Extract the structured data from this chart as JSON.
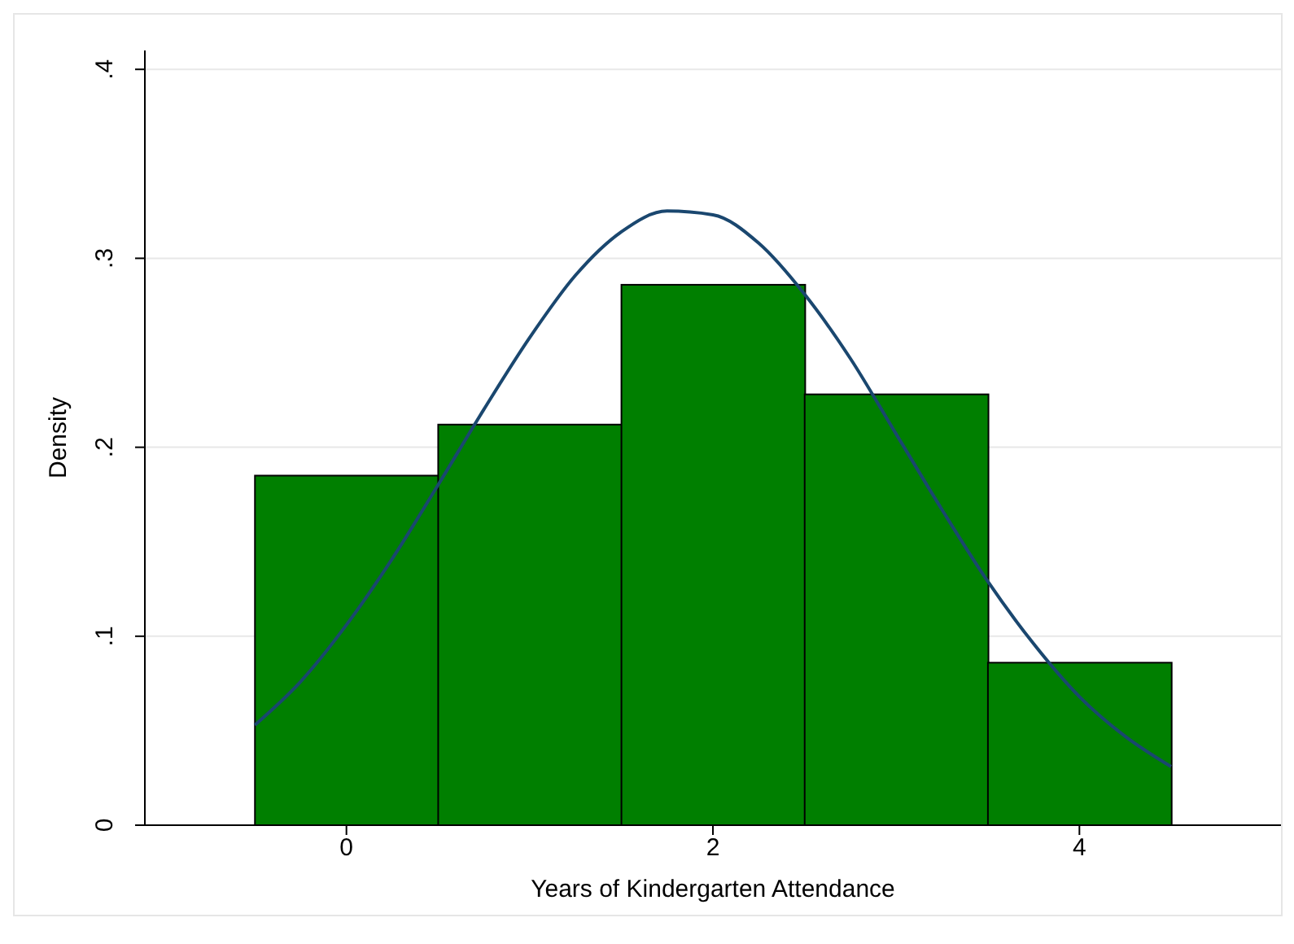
{
  "chart_data": {
    "type": "histogram",
    "xlabel": "Years of Kindergarten Attendance",
    "ylabel": "Density",
    "bins": [
      -0.5,
      0.5,
      1.5,
      2.5,
      3.5,
      4.5
    ],
    "values": [
      0.185,
      0.212,
      0.286,
      0.228,
      0.086
    ],
    "color": "#007f00",
    "series": [
      {
        "type": "line",
        "color": "#1a476f",
        "x": [
          -0.5,
          -0.25,
          0,
          0.25,
          0.5,
          0.75,
          1,
          1.25,
          1.5,
          1.75,
          2,
          2.25,
          2.5,
          2.75,
          3,
          3.25,
          3.5,
          3.75,
          4,
          4.25,
          4.5
        ],
        "values": [
          0.053,
          0.076,
          0.106,
          0.141,
          0.18,
          0.22,
          0.258,
          0.291,
          0.314,
          0.325,
          0.323,
          0.308,
          0.281,
          0.247,
          0.207,
          0.167,
          0.129,
          0.096,
          0.068,
          0.047,
          0.031
        ]
      }
    ],
    "xlim": [
      -1.1,
      5.1
    ],
    "xticks": [
      0,
      2,
      4
    ],
    "ylim": [
      0,
      0.41
    ],
    "yticks": [
      {
        "value": 0,
        "label": "0"
      },
      {
        "value": 0.1,
        "label": ".1"
      },
      {
        "value": 0.2,
        "label": ".2"
      },
      {
        "value": 0.3,
        "label": ".3"
      },
      {
        "value": 0.4,
        "label": ".4"
      }
    ],
    "grid": "y"
  }
}
